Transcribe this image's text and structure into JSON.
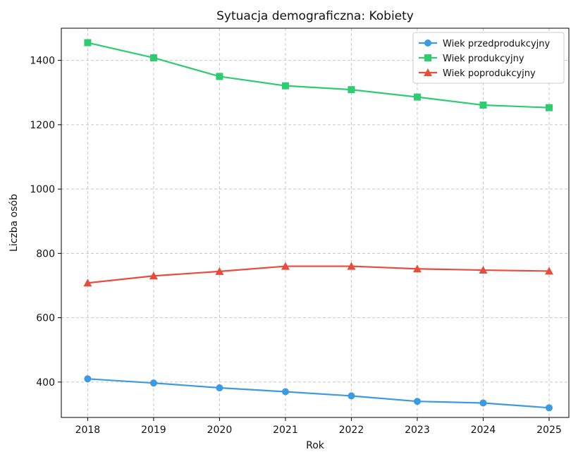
{
  "chart_data": {
    "type": "line",
    "title": "Sytuacja demograficzna: Kobiety",
    "xlabel": "Rok",
    "ylabel": "Liczba osób",
    "x": [
      2018,
      2019,
      2020,
      2021,
      2022,
      2023,
      2024,
      2025
    ],
    "xlim": [
      2017.6,
      2025.3
    ],
    "ylim": [
      290,
      1500
    ],
    "yticks": [
      400,
      600,
      800,
      1000,
      1200,
      1400
    ],
    "grid": true,
    "legend_position": "top-right",
    "series": [
      {
        "name": "Wiek przedprodukcyjny",
        "color": "#3b9ae1",
        "marker": "circle",
        "values": [
          410,
          397,
          382,
          370,
          357,
          340,
          335,
          320
        ]
      },
      {
        "name": "Wiek produkcyjny",
        "color": "#2ecc71",
        "marker": "square",
        "values": [
          1455,
          1408,
          1350,
          1321,
          1309,
          1286,
          1261,
          1253
        ]
      },
      {
        "name": "Wiek poprodukcyjny",
        "color": "#e74c3c",
        "marker": "triangle",
        "values": [
          708,
          730,
          744,
          760,
          760,
          752,
          748,
          745
        ]
      }
    ]
  }
}
